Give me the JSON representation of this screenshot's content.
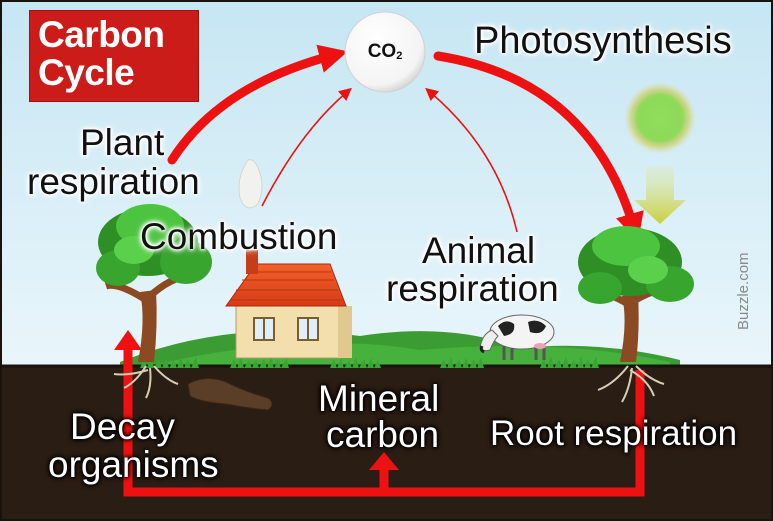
{
  "title": {
    "line1": "Carbon",
    "line2": "Cycle"
  },
  "co2": {
    "main": "CO",
    "subscript": "2"
  },
  "labels": {
    "photosynthesis": "Photosynthesis",
    "plant_respiration": [
      "Plant",
      "respiration"
    ],
    "combustion": "Combustion",
    "animal_respiration": [
      "Animal",
      "respiration"
    ],
    "decay_organisms": [
      "Decay",
      "organisms"
    ],
    "mineral_carbon": [
      "Mineral",
      "carbon"
    ],
    "root_respiration": "Root respiration"
  },
  "watermark": "Buzzle.com",
  "colors": {
    "sky": "#cfe9f4",
    "soil": "#2a1d14",
    "grass": "#3ea83a",
    "arrow": "#ee1111",
    "title_bg": "#cc1c1a",
    "sun": "#9fd35c"
  }
}
